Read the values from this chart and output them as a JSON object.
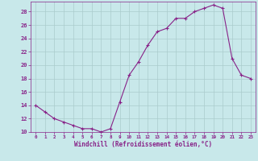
{
  "x": [
    0,
    1,
    2,
    3,
    4,
    5,
    6,
    7,
    8,
    9,
    10,
    11,
    12,
    13,
    14,
    15,
    16,
    17,
    18,
    19,
    20,
    21,
    22,
    23
  ],
  "y": [
    14,
    13,
    12,
    11.5,
    11,
    10.5,
    10.5,
    10,
    10.5,
    14.5,
    18.5,
    20.5,
    23,
    25,
    25.5,
    27,
    27,
    28,
    28.5,
    29,
    28.5,
    21,
    18.5,
    18
  ],
  "line_color": "#882288",
  "marker_color": "#882288",
  "bg_color": "#c8e8ea",
  "grid_color": "#aacccc",
  "xlabel": "Windchill (Refroidissement éolien,°C)",
  "ylim": [
    10,
    29.5
  ],
  "yticks": [
    10,
    12,
    14,
    16,
    18,
    20,
    22,
    24,
    26,
    28
  ],
  "xticks": [
    0,
    1,
    2,
    3,
    4,
    5,
    6,
    7,
    8,
    9,
    10,
    11,
    12,
    13,
    14,
    15,
    16,
    17,
    18,
    19,
    20,
    21,
    22,
    23
  ],
  "xlim": [
    -0.5,
    23.5
  ]
}
